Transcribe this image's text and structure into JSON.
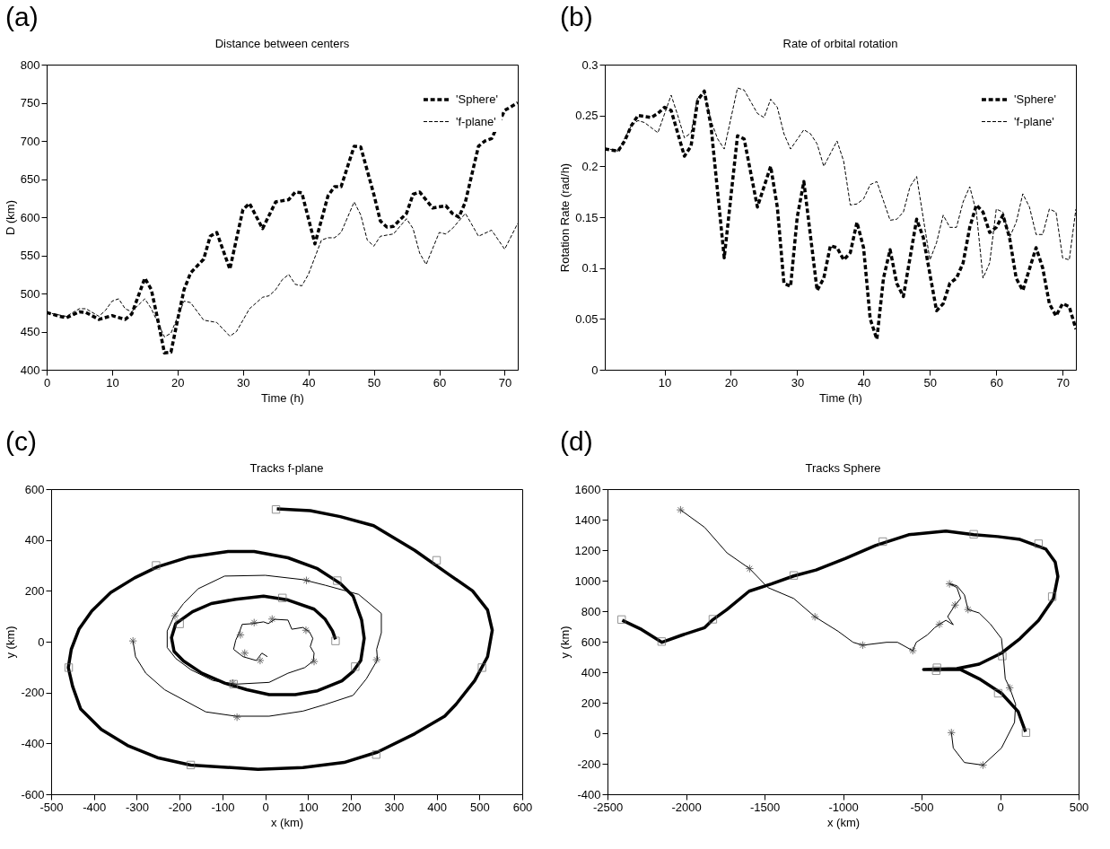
{
  "chart_data": [
    {
      "type": "line",
      "title": "Distance between centers",
      "xlabel": "Time (h)",
      "ylabel": "D (km)",
      "annotations": [
        "(a)"
      ],
      "xlim": [
        0,
        72
      ],
      "xticks": [
        0,
        10,
        20,
        30,
        40,
        50,
        60,
        70
      ],
      "ylim": [
        400,
        800
      ],
      "yticks": [
        400,
        450,
        500,
        550,
        600,
        650,
        700,
        750,
        800
      ],
      "legend": "top right",
      "series": [
        {
          "name": "'Sphere'",
          "color": "#000000",
          "line_style": "dashed",
          "x": [
            0,
            2,
            3,
            5,
            6,
            8,
            10,
            12,
            13,
            15,
            16,
            17,
            18,
            19,
            20,
            21,
            22,
            24,
            25,
            26,
            28,
            30,
            31,
            33,
            35,
            37,
            38,
            39,
            41,
            43,
            44,
            45,
            47,
            48,
            50,
            51,
            52,
            53,
            55,
            56,
            57,
            59,
            61,
            62,
            63,
            64,
            66,
            67,
            68,
            70,
            72
          ],
          "values": [
            475,
            470,
            468,
            476,
            475,
            466,
            471,
            466,
            473,
            520,
            505,
            465,
            422,
            423,
            465,
            505,
            527,
            545,
            575,
            580,
            532,
            610,
            618,
            585,
            620,
            623,
            633,
            632,
            565,
            628,
            640,
            640,
            693,
            692,
            630,
            595,
            587,
            588,
            605,
            630,
            633,
            612,
            615,
            605,
            600,
            620,
            693,
            700,
            703,
            740,
            750
          ]
        },
        {
          "name": "'f-plane'",
          "color": "#000000",
          "line_style": "dashed",
          "x": [
            0,
            3,
            5,
            6,
            8,
            9,
            10,
            11,
            12,
            13,
            15,
            16,
            18,
            19,
            21,
            22,
            24,
            26,
            28,
            29,
            31,
            33,
            34,
            35,
            36,
            37,
            38,
            39,
            40,
            42,
            43,
            44,
            45,
            47,
            48,
            49,
            50,
            51,
            53,
            55,
            56,
            57,
            58,
            60,
            61,
            62,
            64,
            66,
            68,
            70,
            72
          ],
          "values": [
            475,
            470,
            480,
            480,
            470,
            478,
            490,
            493,
            480,
            476,
            493,
            480,
            443,
            448,
            490,
            488,
            465,
            462,
            444,
            450,
            480,
            495,
            497,
            505,
            518,
            525,
            512,
            510,
            525,
            570,
            573,
            573,
            580,
            620,
            603,
            570,
            562,
            575,
            578,
            598,
            585,
            553,
            538,
            580,
            578,
            585,
            605,
            575,
            583,
            558,
            592
          ]
        }
      ]
    },
    {
      "type": "line",
      "title": "Rate of orbital rotation",
      "xlabel": "Time (h)",
      "ylabel": "Rotation Rate (rad/h)",
      "annotations": [
        "(b)"
      ],
      "xlim": [
        1,
        72
      ],
      "xticks": [
        10,
        20,
        30,
        40,
        50,
        60,
        70
      ],
      "ylim": [
        0,
        0.3
      ],
      "yticks": [
        0,
        0.05,
        0.1,
        0.15,
        0.2,
        0.25,
        0.3
      ],
      "legend": "top right",
      "series": [
        {
          "name": "'Sphere'",
          "color": "#000000",
          "line_style": "dashed",
          "x": [
            1,
            3,
            4,
            5,
            6,
            8,
            9,
            10,
            11,
            13,
            14,
            15,
            16,
            17,
            19,
            21,
            22,
            24,
            26,
            27,
            28,
            29,
            30,
            31,
            33,
            34,
            35,
            36,
            37,
            38,
            39,
            40,
            41,
            42,
            43,
            44,
            45,
            46,
            48,
            49,
            51,
            52,
            53,
            54,
            55,
            56,
            57,
            58,
            59,
            60,
            61,
            62,
            63,
            64,
            66,
            67,
            68,
            69,
            70,
            71,
            72
          ],
          "values": [
            0.217,
            0.215,
            0.225,
            0.24,
            0.25,
            0.248,
            0.252,
            0.258,
            0.255,
            0.21,
            0.22,
            0.265,
            0.274,
            0.24,
            0.11,
            0.23,
            0.227,
            0.16,
            0.2,
            0.16,
            0.085,
            0.082,
            0.15,
            0.185,
            0.078,
            0.09,
            0.122,
            0.12,
            0.108,
            0.115,
            0.145,
            0.12,
            0.05,
            0.03,
            0.09,
            0.118,
            0.085,
            0.072,
            0.148,
            0.13,
            0.058,
            0.065,
            0.085,
            0.09,
            0.105,
            0.14,
            0.162,
            0.155,
            0.135,
            0.14,
            0.152,
            0.13,
            0.09,
            0.078,
            0.12,
            0.1,
            0.065,
            0.053,
            0.065,
            0.062,
            0.04
          ]
        },
        {
          "name": "'f-plane'",
          "color": "#000000",
          "line_style": "dashed",
          "x": [
            1,
            3,
            5,
            6,
            7,
            9,
            11,
            12,
            13,
            14,
            15,
            16,
            17,
            18,
            19,
            21,
            22,
            24,
            25,
            26,
            27,
            28,
            29,
            31,
            32,
            33,
            34,
            36,
            37,
            38,
            39,
            40,
            41,
            42,
            44,
            45,
            46,
            47,
            48,
            50,
            51,
            52,
            53,
            54,
            55,
            56,
            57,
            58,
            59,
            60,
            61,
            62,
            63,
            64,
            65,
            66,
            67,
            68,
            69,
            70,
            71,
            72
          ],
          "values": [
            0.218,
            0.215,
            0.24,
            0.245,
            0.243,
            0.233,
            0.27,
            0.25,
            0.228,
            0.233,
            0.268,
            0.272,
            0.245,
            0.227,
            0.217,
            0.277,
            0.275,
            0.252,
            0.248,
            0.266,
            0.258,
            0.232,
            0.217,
            0.236,
            0.232,
            0.222,
            0.2,
            0.225,
            0.205,
            0.162,
            0.163,
            0.168,
            0.182,
            0.185,
            0.147,
            0.148,
            0.155,
            0.18,
            0.19,
            0.108,
            0.125,
            0.152,
            0.14,
            0.14,
            0.165,
            0.18,
            0.155,
            0.09,
            0.105,
            0.158,
            0.155,
            0.13,
            0.145,
            0.173,
            0.16,
            0.133,
            0.133,
            0.158,
            0.155,
            0.11,
            0.108,
            0.158
          ]
        }
      ]
    },
    {
      "type": "line",
      "title": "Tracks f-plane",
      "xlabel": "x (km)",
      "ylabel": "y (km)",
      "annotations": [
        "(c)"
      ],
      "xlim": [
        -500,
        600
      ],
      "xticks": [
        -500,
        -400,
        -300,
        -200,
        -100,
        0,
        100,
        200,
        300,
        400,
        500,
        600
      ],
      "ylim": [
        -600,
        600
      ],
      "yticks": [
        -600,
        -400,
        -200,
        0,
        200,
        400,
        600
      ],
      "series": [
        {
          "type": "line",
          "color": "#000000",
          "line_style": "solid",
          "x": [
            27,
            105,
            175,
            253,
            349,
            428,
            484,
            519,
            530,
            519,
            489,
            445,
            419,
            349,
            262,
            184,
            88,
            -17,
            -174,
            -252,
            -322,
            -383,
            -431,
            -450,
            -460,
            -453,
            -435,
            -405,
            -361,
            -305,
            -252,
            -178,
            -87,
            -26,
            53,
            122,
            175,
            205,
            225,
            231,
            223,
            205,
            179,
            122,
            70,
            9,
            -43,
            -95,
            -148,
            -191,
            -213,
            -219,
            -209,
            -170,
            -126,
            -69,
            -4,
            53,
            114,
            140,
            157,
            164
          ],
          "values": [
            522,
            515,
            492,
            456,
            359,
            265,
            200,
            125,
            45,
            -59,
            -153,
            -247,
            -293,
            -362,
            -434,
            -475,
            -495,
            -502,
            -485,
            -456,
            -408,
            -345,
            -265,
            -175,
            -102,
            -30,
            49,
            121,
            193,
            251,
            294,
            333,
            355,
            355,
            330,
            287,
            229,
            179,
            85,
            13,
            -74,
            -117,
            -154,
            -193,
            -208,
            -208,
            -189,
            -163,
            -124,
            -76,
            -38,
            16,
            71,
            118,
            150,
            167,
            179,
            164,
            128,
            88,
            42,
            9
          ]
        },
        {
          "type": "line",
          "color": "#000000",
          "line_style": "solid",
          "x": [
            -309,
            -303,
            -279,
            -235,
            -139,
            -69,
            9,
            88,
            140,
            205,
            236,
            262,
            260,
            271,
            271,
            218,
            140,
            88,
            0,
            -95,
            -157,
            -191,
            -213,
            -229,
            -229,
            -209,
            -174,
            -122,
            -69,
            9,
            53,
            92,
            112,
            114,
            105,
            111,
            103,
            88,
            62,
            53,
            22,
            7,
            -4,
            -30,
            -54,
            -61,
            -69,
            -74,
            -52,
            -21,
            -8,
            5
          ],
          "values": [
            3,
            -59,
            -124,
            -189,
            -276,
            -293,
            -293,
            -273,
            -247,
            -211,
            -146,
            -71,
            -30,
            35,
            111,
            186,
            222,
            244,
            261,
            258,
            208,
            150,
            100,
            42,
            -23,
            -66,
            -110,
            -153,
            -167,
            -160,
            -124,
            -102,
            -76,
            -45,
            -19,
            13,
            39,
            56,
            49,
            85,
            88,
            71,
            78,
            71,
            68,
            35,
            6,
            -30,
            -59,
            -74,
            -45,
            -59
          ]
        },
        {
          "type": "scatter",
          "marker": "square",
          "color": "#666666",
          "x": [
            25,
            -255,
            400,
            168,
            40,
            -200,
            164,
            -459,
            210,
            506,
            -74,
            259,
            -174
          ],
          "values": [
            520,
            300,
            320,
            240,
            172,
            70,
            3,
            -102,
            -98,
            -102,
            -167,
            -444,
            -485
          ]
        },
        {
          "type": "scatter",
          "marker": "cross",
          "color": "#333333",
          "x": [
            -309,
            -211,
            -76,
            -66,
            -26,
            16,
            -58,
            -48,
            -12,
            95,
            114,
            96,
            260
          ],
          "values": [
            3,
            102,
            -163,
            -297,
            75,
            89,
            27,
            -45,
            -74,
            45,
            -78,
            241,
            -71
          ]
        }
      ]
    },
    {
      "type": "line",
      "title": "Tracks Sphere",
      "xlabel": "x (km)",
      "ylabel": "y (km)",
      "annotations": [
        "(d)"
      ],
      "xlim": [
        -2500,
        500
      ],
      "xticks": [
        -2500,
        -2000,
        -1500,
        -1000,
        -500,
        0,
        500
      ],
      "ylim": [
        -400,
        1600
      ],
      "yticks": [
        -400,
        -200,
        0,
        200,
        400,
        600,
        800,
        1000,
        1200,
        1400,
        1600
      ],
      "series": [
        {
          "type": "line",
          "color": "#000000",
          "line_style": "solid",
          "x": [
            162,
            115,
            9,
            -133,
            -251,
            -487,
            -275,
            -133,
            9,
            127,
            245,
            340,
            368,
            351,
            292,
            127,
            -15,
            -168,
            -345,
            -582,
            -794,
            -983,
            -1172,
            -1314,
            -1456,
            -1598,
            -1739,
            -1834,
            -1881,
            -2023,
            -2153,
            -2283,
            -2406
          ],
          "values": [
            10,
            142,
            262,
            357,
            417,
            417,
            424,
            453,
            525,
            620,
            740,
            883,
            1027,
            1122,
            1206,
            1270,
            1289,
            1301,
            1325,
            1301,
            1230,
            1146,
            1070,
            1031,
            979,
            931,
            811,
            740,
            692,
            644,
            596,
            680,
            740
          ]
        },
        {
          "type": "line",
          "color": "#000000",
          "line_style": "solid",
          "x": [
            -2035,
            -1881,
            -1739,
            -1595,
            -1479,
            -1314,
            -1179,
            -1031,
            -936,
            -875,
            -723,
            -653,
            -556,
            -534,
            -464,
            -416,
            -386,
            -345,
            -298,
            -334,
            -287,
            -251,
            -275,
            -322,
            -275,
            -227,
            -204,
            -133,
            -62,
            9,
            21,
            33,
            61,
            99,
            92,
            9,
            -109,
            -227,
            -298,
            -310
          ],
          "values": [
            1464,
            1349,
            1182,
            1079,
            955,
            883,
            763,
            668,
            596,
            577,
            596,
            596,
            541,
            596,
            644,
            692,
            714,
            740,
            711,
            764,
            840,
            883,
            955,
            979,
            967,
            907,
            811,
            788,
            716,
            620,
            501,
            357,
            298,
            190,
            71,
            -97,
            -209,
            -192,
            -97,
            4
          ]
        },
        {
          "type": "scatter",
          "marker": "square",
          "color": "#666666",
          "x": [
            -2410,
            -2155,
            -1829,
            -1314,
            -747,
            -168,
            245,
            332,
            14,
            -402,
            -407,
            -12,
            165
          ],
          "values": [
            745,
            601,
            747,
            1034,
            1256,
            1304,
            1242,
            895,
            506,
            429,
            410,
            262,
            4
          ]
        },
        {
          "type": "scatter",
          "marker": "cross",
          "color": "#333333",
          "x": [
            -2035,
            -1595,
            -1179,
            -875,
            -556,
            -386,
            -322,
            -287,
            -204,
            61,
            -109,
            -310
          ],
          "values": [
            1464,
            1079,
            763,
            577,
            541,
            714,
            979,
            840,
            811,
            298,
            -209,
            4
          ]
        }
      ]
    }
  ]
}
